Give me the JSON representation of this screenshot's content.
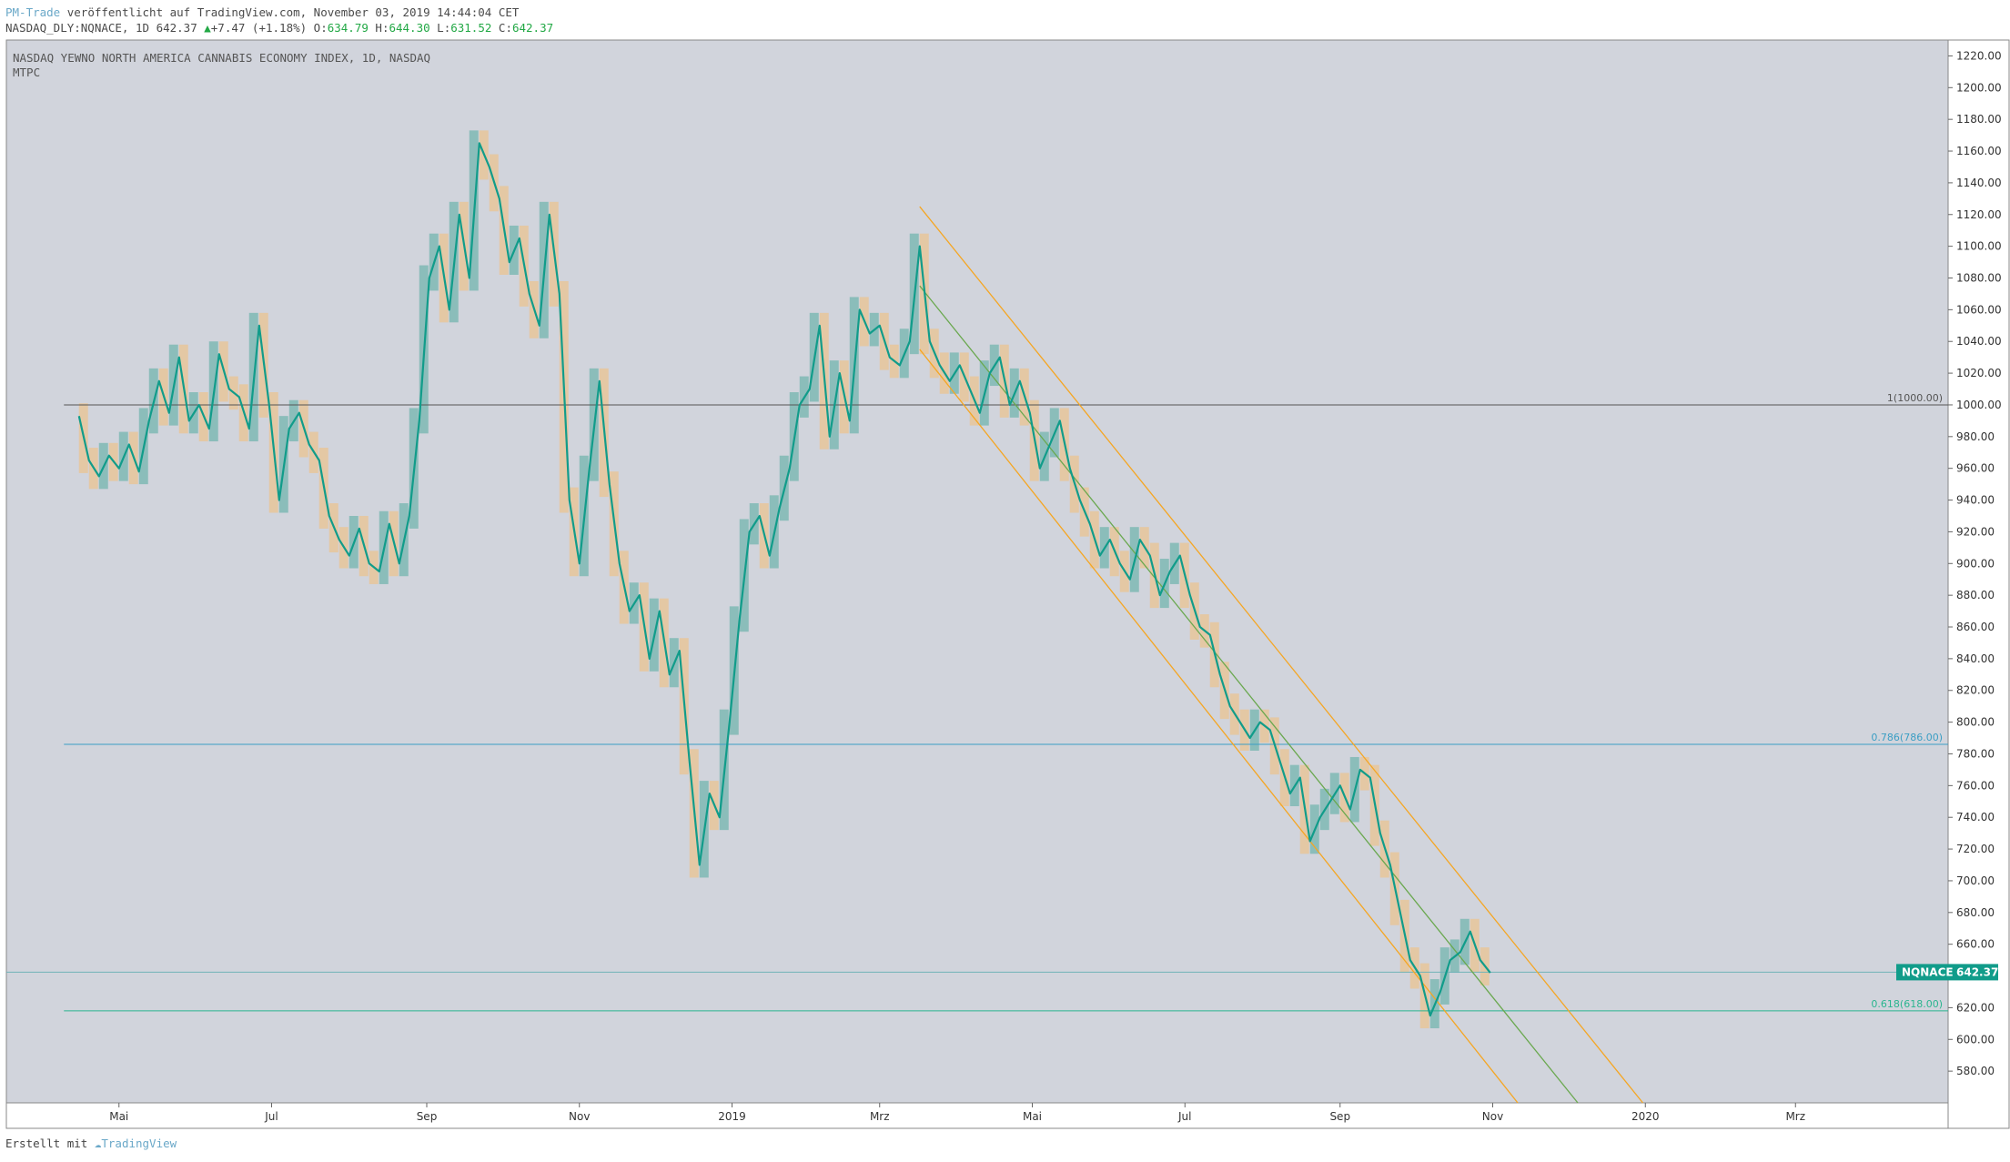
{
  "header": {
    "publisher": "PM-Trade",
    "published_text": " veröffentlicht auf TradingView.com, November 03, 2019 14:44:04 CET",
    "symbol_line": "NASDAQ_DLY:NQNACE, 1D 642.37",
    "change": "+7.47 (+1.18%)",
    "o_label": "O:",
    "o_value": "634.79",
    "h_label": "H:",
    "h_value": "644.30",
    "l_label": "L:",
    "l_value": "631.52",
    "c_label": "C:",
    "c_value": "642.37"
  },
  "colors": {
    "background": "#d1d4dc",
    "line": "#119c8a",
    "bull_box": "#7fb9b4",
    "bear_box": "#e8c59a",
    "channel": "#f5a623",
    "channel_mid": "#6aa84f",
    "fib_786": "#3b9ec4",
    "fib_618": "#2bb58f",
    "level_1000": "#555555",
    "price_tag": "#119c8a"
  },
  "chart_data": {
    "type": "line",
    "title": "NASDAQ YEWNO NORTH AMERICA CANNABIS ECONOMY INDEX, 1D, NASDAQ",
    "subtitle": "MTPC",
    "symbol": "NQNACE",
    "last_price": "642.37",
    "ylim": [
      560,
      1230
    ],
    "xlim": [
      "2018-03-17",
      "2020-05-01"
    ],
    "x_ticks": [
      {
        "date": "2018-05-01",
        "label": "Mai"
      },
      {
        "date": "2018-07-01",
        "label": "Jul"
      },
      {
        "date": "2018-09-01",
        "label": "Sep"
      },
      {
        "date": "2018-11-01",
        "label": "Nov"
      },
      {
        "date": "2019-01-01",
        "label": "2019"
      },
      {
        "date": "2019-03-01",
        "label": "Mrz"
      },
      {
        "date": "2019-05-01",
        "label": "Mai"
      },
      {
        "date": "2019-07-01",
        "label": "Jul"
      },
      {
        "date": "2019-09-01",
        "label": "Sep"
      },
      {
        "date": "2019-11-01",
        "label": "Nov"
      },
      {
        "date": "2020-01-01",
        "label": "2020"
      },
      {
        "date": "2020-03-01",
        "label": "Mrz"
      }
    ],
    "y_ticks": [
      "580.00",
      "600.00",
      "620.00",
      "640.00",
      "660.00",
      "680.00",
      "700.00",
      "720.00",
      "740.00",
      "760.00",
      "780.00",
      "800.00",
      "820.00",
      "840.00",
      "860.00",
      "880.00",
      "900.00",
      "920.00",
      "940.00",
      "960.00",
      "980.00",
      "1000.00",
      "1020.00",
      "1040.00",
      "1060.00",
      "1080.00",
      "1100.00",
      "1120.00",
      "1140.00",
      "1160.00",
      "1180.00",
      "1200.00",
      "1220.00"
    ],
    "y_tick_values": [
      580,
      600,
      620,
      640,
      660,
      680,
      700,
      720,
      740,
      760,
      780,
      800,
      820,
      840,
      860,
      880,
      900,
      920,
      940,
      960,
      980,
      1000,
      1020,
      1040,
      1060,
      1080,
      1100,
      1120,
      1140,
      1160,
      1180,
      1200,
      1220
    ],
    "series": [
      {
        "values": [
          [
            "2018-04-15",
            993
          ],
          [
            "2018-04-19",
            965
          ],
          [
            "2018-04-23",
            955
          ],
          [
            "2018-04-27",
            968
          ],
          [
            "2018-05-01",
            960
          ],
          [
            "2018-05-05",
            975
          ],
          [
            "2018-05-09",
            958
          ],
          [
            "2018-05-13",
            990
          ],
          [
            "2018-05-17",
            1015
          ],
          [
            "2018-05-21",
            995
          ],
          [
            "2018-05-25",
            1030
          ],
          [
            "2018-05-29",
            990
          ],
          [
            "2018-06-02",
            1000
          ],
          [
            "2018-06-06",
            985
          ],
          [
            "2018-06-10",
            1032
          ],
          [
            "2018-06-14",
            1010
          ],
          [
            "2018-06-18",
            1005
          ],
          [
            "2018-06-22",
            985
          ],
          [
            "2018-06-26",
            1050
          ],
          [
            "2018-06-30",
            1000
          ],
          [
            "2018-07-04",
            940
          ],
          [
            "2018-07-08",
            985
          ],
          [
            "2018-07-12",
            995
          ],
          [
            "2018-07-16",
            975
          ],
          [
            "2018-07-20",
            965
          ],
          [
            "2018-07-24",
            930
          ],
          [
            "2018-07-28",
            915
          ],
          [
            "2018-08-01",
            905
          ],
          [
            "2018-08-05",
            922
          ],
          [
            "2018-08-09",
            900
          ],
          [
            "2018-08-13",
            895
          ],
          [
            "2018-08-17",
            925
          ],
          [
            "2018-08-21",
            900
          ],
          [
            "2018-08-25",
            930
          ],
          [
            "2018-08-29",
            990
          ],
          [
            "2018-09-02",
            1080
          ],
          [
            "2018-09-06",
            1100
          ],
          [
            "2018-09-10",
            1060
          ],
          [
            "2018-09-14",
            1120
          ],
          [
            "2018-09-18",
            1080
          ],
          [
            "2018-09-22",
            1165
          ],
          [
            "2018-09-26",
            1150
          ],
          [
            "2018-09-30",
            1130
          ],
          [
            "2018-10-04",
            1090
          ],
          [
            "2018-10-08",
            1105
          ],
          [
            "2018-10-12",
            1070
          ],
          [
            "2018-10-16",
            1050
          ],
          [
            "2018-10-20",
            1120
          ],
          [
            "2018-10-24",
            1070
          ],
          [
            "2018-10-28",
            940
          ],
          [
            "2018-11-01",
            900
          ],
          [
            "2018-11-05",
            960
          ],
          [
            "2018-11-09",
            1015
          ],
          [
            "2018-11-13",
            950
          ],
          [
            "2018-11-17",
            900
          ],
          [
            "2018-11-21",
            870
          ],
          [
            "2018-11-25",
            880
          ],
          [
            "2018-11-29",
            840
          ],
          [
            "2018-12-03",
            870
          ],
          [
            "2018-12-07",
            830
          ],
          [
            "2018-12-11",
            845
          ],
          [
            "2018-12-15",
            775
          ],
          [
            "2018-12-19",
            710
          ],
          [
            "2018-12-23",
            755
          ],
          [
            "2018-12-27",
            740
          ],
          [
            "2018-12-31",
            800
          ],
          [
            "2019-01-04",
            865
          ],
          [
            "2019-01-08",
            920
          ],
          [
            "2019-01-12",
            930
          ],
          [
            "2019-01-16",
            905
          ],
          [
            "2019-01-20",
            935
          ],
          [
            "2019-01-24",
            960
          ],
          [
            "2019-01-28",
            1000
          ],
          [
            "2019-02-01",
            1010
          ],
          [
            "2019-02-05",
            1050
          ],
          [
            "2019-02-09",
            980
          ],
          [
            "2019-02-13",
            1020
          ],
          [
            "2019-02-17",
            990
          ],
          [
            "2019-02-21",
            1060
          ],
          [
            "2019-02-25",
            1045
          ],
          [
            "2019-03-01",
            1050
          ],
          [
            "2019-03-05",
            1030
          ],
          [
            "2019-03-09",
            1025
          ],
          [
            "2019-03-13",
            1040
          ],
          [
            "2019-03-17",
            1100
          ],
          [
            "2019-03-21",
            1040
          ],
          [
            "2019-03-25",
            1025
          ],
          [
            "2019-03-29",
            1015
          ],
          [
            "2019-04-02",
            1025
          ],
          [
            "2019-04-06",
            1010
          ],
          [
            "2019-04-10",
            995
          ],
          [
            "2019-04-14",
            1020
          ],
          [
            "2019-04-18",
            1030
          ],
          [
            "2019-04-22",
            1000
          ],
          [
            "2019-04-26",
            1015
          ],
          [
            "2019-04-30",
            995
          ],
          [
            "2019-05-04",
            960
          ],
          [
            "2019-05-08",
            975
          ],
          [
            "2019-05-12",
            990
          ],
          [
            "2019-05-16",
            960
          ],
          [
            "2019-05-20",
            940
          ],
          [
            "2019-05-24",
            925
          ],
          [
            "2019-05-28",
            905
          ],
          [
            "2019-06-01",
            915
          ],
          [
            "2019-06-05",
            900
          ],
          [
            "2019-06-09",
            890
          ],
          [
            "2019-06-13",
            915
          ],
          [
            "2019-06-17",
            905
          ],
          [
            "2019-06-21",
            880
          ],
          [
            "2019-06-25",
            895
          ],
          [
            "2019-06-29",
            905
          ],
          [
            "2019-07-03",
            880
          ],
          [
            "2019-07-07",
            860
          ],
          [
            "2019-07-11",
            855
          ],
          [
            "2019-07-15",
            830
          ],
          [
            "2019-07-19",
            810
          ],
          [
            "2019-07-23",
            800
          ],
          [
            "2019-07-27",
            790
          ],
          [
            "2019-07-31",
            800
          ],
          [
            "2019-08-04",
            795
          ],
          [
            "2019-08-08",
            775
          ],
          [
            "2019-08-12",
            755
          ],
          [
            "2019-08-16",
            765
          ],
          [
            "2019-08-20",
            725
          ],
          [
            "2019-08-24",
            740
          ],
          [
            "2019-08-28",
            750
          ],
          [
            "2019-09-01",
            760
          ],
          [
            "2019-09-05",
            745
          ],
          [
            "2019-09-09",
            770
          ],
          [
            "2019-09-13",
            765
          ],
          [
            "2019-09-17",
            730
          ],
          [
            "2019-09-21",
            710
          ],
          [
            "2019-09-25",
            680
          ],
          [
            "2019-09-29",
            650
          ],
          [
            "2019-10-03",
            640
          ],
          [
            "2019-10-07",
            615
          ],
          [
            "2019-10-11",
            630
          ],
          [
            "2019-10-15",
            650
          ],
          [
            "2019-10-19",
            655
          ],
          [
            "2019-10-23",
            668
          ],
          [
            "2019-10-27",
            650
          ],
          [
            "2019-10-31",
            642
          ]
        ]
      }
    ],
    "levels": [
      {
        "value": 1000,
        "label": "1(1000.00)"
      },
      {
        "value": 786,
        "label": "0.786(786.00)"
      },
      {
        "value": 618,
        "label": "0.618(618.00)"
      }
    ],
    "grid": false,
    "legend": "none"
  },
  "footer": {
    "created_with": "Erstellt mit ",
    "brand": "TradingView"
  }
}
